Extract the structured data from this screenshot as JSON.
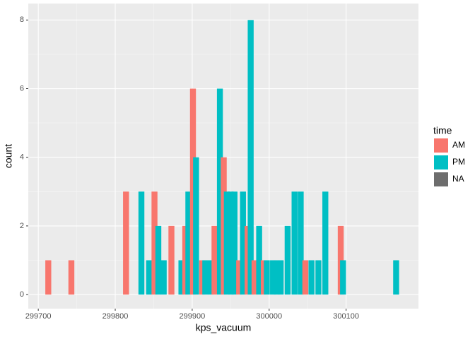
{
  "chart_data": {
    "type": "bar",
    "x_label": "kps_vacuum",
    "y_label": "count",
    "legend_title": "time",
    "x": [
      299713,
      299743,
      299814,
      299834,
      299844,
      299851,
      299856,
      299863,
      299873,
      299886,
      299891,
      299895,
      299901,
      299905,
      299913,
      299917,
      299924,
      299929,
      299936,
      299941,
      299945,
      299950,
      299955,
      299961,
      299966,
      299972,
      299976,
      299981,
      299987,
      299993,
      299997,
      300005,
      300010,
      300015,
      300024,
      300033,
      300041,
      300047,
      300055,
      300064,
      300073,
      300093,
      300096,
      300165
    ],
    "series": [
      {
        "name": "AM",
        "color": "#f8766d",
        "values": [
          1,
          1,
          3,
          null,
          null,
          3,
          null,
          null,
          2,
          null,
          2,
          null,
          6,
          null,
          1,
          null,
          null,
          2,
          null,
          4,
          null,
          null,
          null,
          1,
          null,
          2,
          null,
          1,
          null,
          1,
          null,
          null,
          null,
          null,
          null,
          null,
          null,
          1,
          null,
          null,
          null,
          2,
          null,
          null
        ]
      },
      {
        "name": "PM",
        "color": "#00bfc4",
        "values": [
          null,
          null,
          null,
          3,
          1,
          null,
          2,
          1,
          null,
          1,
          null,
          3,
          null,
          4,
          null,
          1,
          1,
          null,
          6,
          null,
          3,
          3,
          3,
          null,
          3,
          null,
          8,
          null,
          2,
          null,
          1,
          1,
          1,
          1,
          2,
          3,
          3,
          null,
          1,
          1,
          3,
          null,
          1,
          1
        ]
      },
      {
        "name": "NA",
        "color": "#6d6d6d",
        "values": [
          null,
          null,
          null,
          null,
          null,
          null,
          null,
          null,
          null,
          null,
          null,
          null,
          null,
          null,
          null,
          null,
          null,
          null,
          null,
          null,
          null,
          null,
          null,
          null,
          null,
          null,
          null,
          null,
          null,
          null,
          null,
          null,
          null,
          null,
          null,
          null,
          null,
          null,
          null,
          null,
          null,
          null,
          null,
          null
        ]
      }
    ],
    "xlim": [
      299687,
      300194
    ],
    "ylim": [
      -0.41,
      8.48
    ],
    "xticks": [
      299700,
      299800,
      299900,
      300000,
      300100
    ],
    "yticks": [
      0,
      2,
      4,
      6,
      8
    ],
    "grid": true
  }
}
